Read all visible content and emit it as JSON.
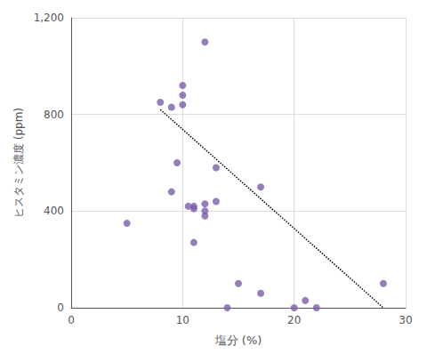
{
  "chart_data": {
    "type": "scatter",
    "xlabel": "塩分 (%)",
    "ylabel": "ヒスタミン濃度 (ppm)",
    "series": [
      {
        "type": "scatter",
        "color": "#7b5ea7",
        "marker": "circle",
        "x": [
          5,
          8,
          9,
          9,
          9.5,
          10,
          10,
          10,
          10.5,
          11,
          11,
          11,
          12,
          12,
          12,
          12,
          13,
          13,
          14,
          15,
          17,
          17,
          20,
          21,
          22,
          28
        ],
        "values": [
          350,
          850,
          830,
          480,
          600,
          840,
          880,
          920,
          420,
          410,
          420,
          270,
          430,
          400,
          380,
          1100,
          440,
          580,
          0,
          100,
          500,
          60,
          0,
          30,
          0,
          100
        ]
      },
      {
        "type": "line",
        "color": "#000000",
        "line_style": "dotted",
        "x": [
          8,
          28
        ],
        "values": [
          820,
          0
        ]
      }
    ],
    "xlim": [
      0,
      30
    ],
    "xticks": [
      0,
      10,
      20,
      30
    ],
    "ylim": [
      0,
      1200
    ],
    "yticks": [
      0,
      400,
      800,
      {
        "value": 1200,
        "label": "1,200"
      }
    ],
    "grid": true
  }
}
